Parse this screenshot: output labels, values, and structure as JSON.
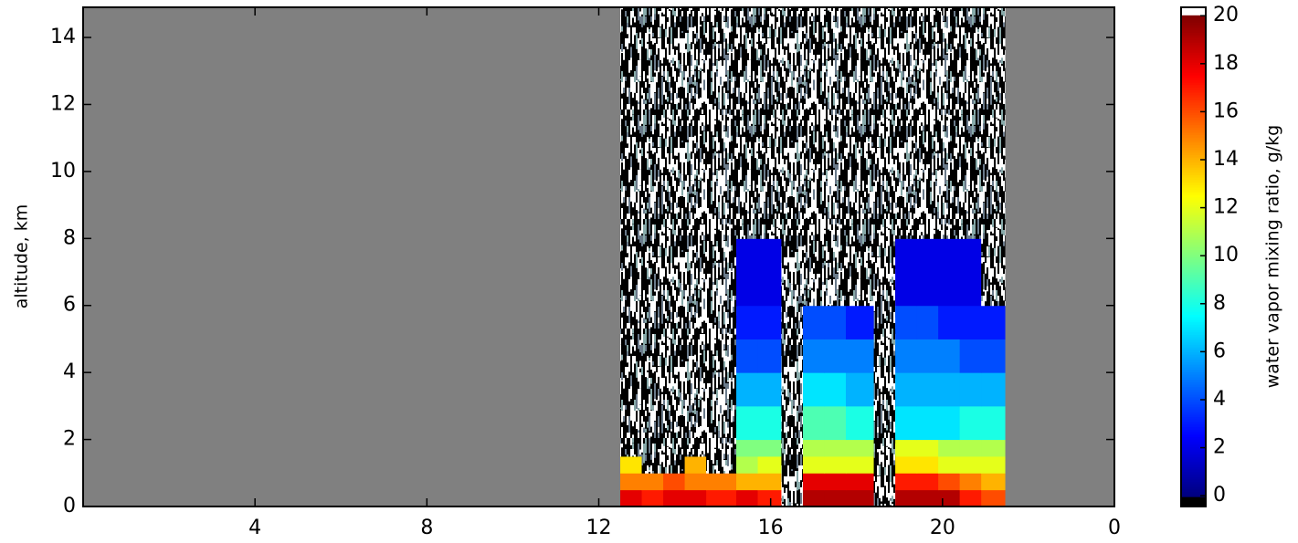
{
  "chart_data": {
    "type": "heatmap",
    "ylabel": "altitude, km",
    "xlim": [
      0,
      24
    ],
    "xticks": [
      4,
      8,
      12,
      16,
      20,
      {
        "value": 24,
        "label": "0"
      }
    ],
    "ylim": [
      0,
      14.9
    ],
    "yticks": [
      0,
      2,
      4,
      6,
      8,
      10,
      12,
      14
    ],
    "x_edges": [
      12.5,
      13,
      13.5,
      14,
      14.5,
      15.2,
      15.7,
      16.25,
      16.75,
      17.25,
      17.75,
      18.4,
      18.9,
      19.4,
      19.9,
      20.4,
      20.9,
      21.45
    ],
    "y_edges": [
      0,
      0.5,
      1,
      1.5,
      2,
      3,
      4,
      5,
      6,
      8,
      10,
      12,
      14.9
    ],
    "values": [
      [
        18,
        17,
        18,
        18,
        17,
        18,
        17,
        null,
        19,
        19,
        19,
        null,
        19,
        19,
        19,
        17,
        16
      ],
      [
        15,
        15,
        16,
        15,
        15,
        14,
        14,
        null,
        18,
        18,
        18,
        null,
        17,
        17,
        16,
        15,
        14
      ],
      [
        13,
        null,
        null,
        14,
        null,
        11,
        12,
        null,
        12,
        12,
        12,
        null,
        13,
        13,
        12,
        12,
        12
      ],
      [
        null,
        null,
        null,
        null,
        null,
        10,
        10,
        null,
        11,
        11,
        11,
        null,
        12,
        12,
        11,
        11,
        11
      ],
      [
        null,
        null,
        null,
        null,
        null,
        8,
        8,
        null,
        9,
        9,
        8,
        null,
        7,
        7,
        7,
        8,
        8
      ],
      [
        null,
        null,
        null,
        null,
        null,
        6,
        6,
        null,
        7,
        7,
        6,
        null,
        6,
        6,
        6,
        6,
        6
      ],
      [
        null,
        null,
        null,
        null,
        null,
        4,
        4,
        null,
        5,
        5,
        5,
        null,
        5,
        5,
        5,
        4,
        4
      ],
      [
        null,
        null,
        null,
        null,
        null,
        3,
        3,
        null,
        4,
        4,
        3,
        null,
        4,
        4,
        3,
        3,
        3
      ],
      [
        null,
        null,
        null,
        null,
        null,
        2,
        2,
        null,
        null,
        null,
        null,
        null,
        2,
        2,
        2,
        2,
        null
      ],
      [
        null,
        null,
        null,
        null,
        null,
        null,
        null,
        null,
        null,
        null,
        null,
        null,
        null,
        null,
        null,
        null,
        null
      ],
      [
        null,
        null,
        null,
        null,
        null,
        null,
        null,
        null,
        null,
        null,
        null,
        null,
        null,
        null,
        null,
        null,
        null
      ],
      [
        null,
        null,
        null,
        null,
        null,
        null,
        null,
        null,
        null,
        null,
        null,
        null,
        null,
        null,
        null,
        null,
        null
      ]
    ],
    "colormap": "jet",
    "background": "#808080",
    "colorbar": {
      "label": "water vapor mixing ratio, g/kg",
      "clim": [
        0,
        20
      ],
      "lim": [
        -0.45,
        20.35
      ],
      "ticks": [
        0,
        2,
        4,
        6,
        8,
        10,
        12,
        14,
        16,
        18,
        20
      ]
    }
  }
}
